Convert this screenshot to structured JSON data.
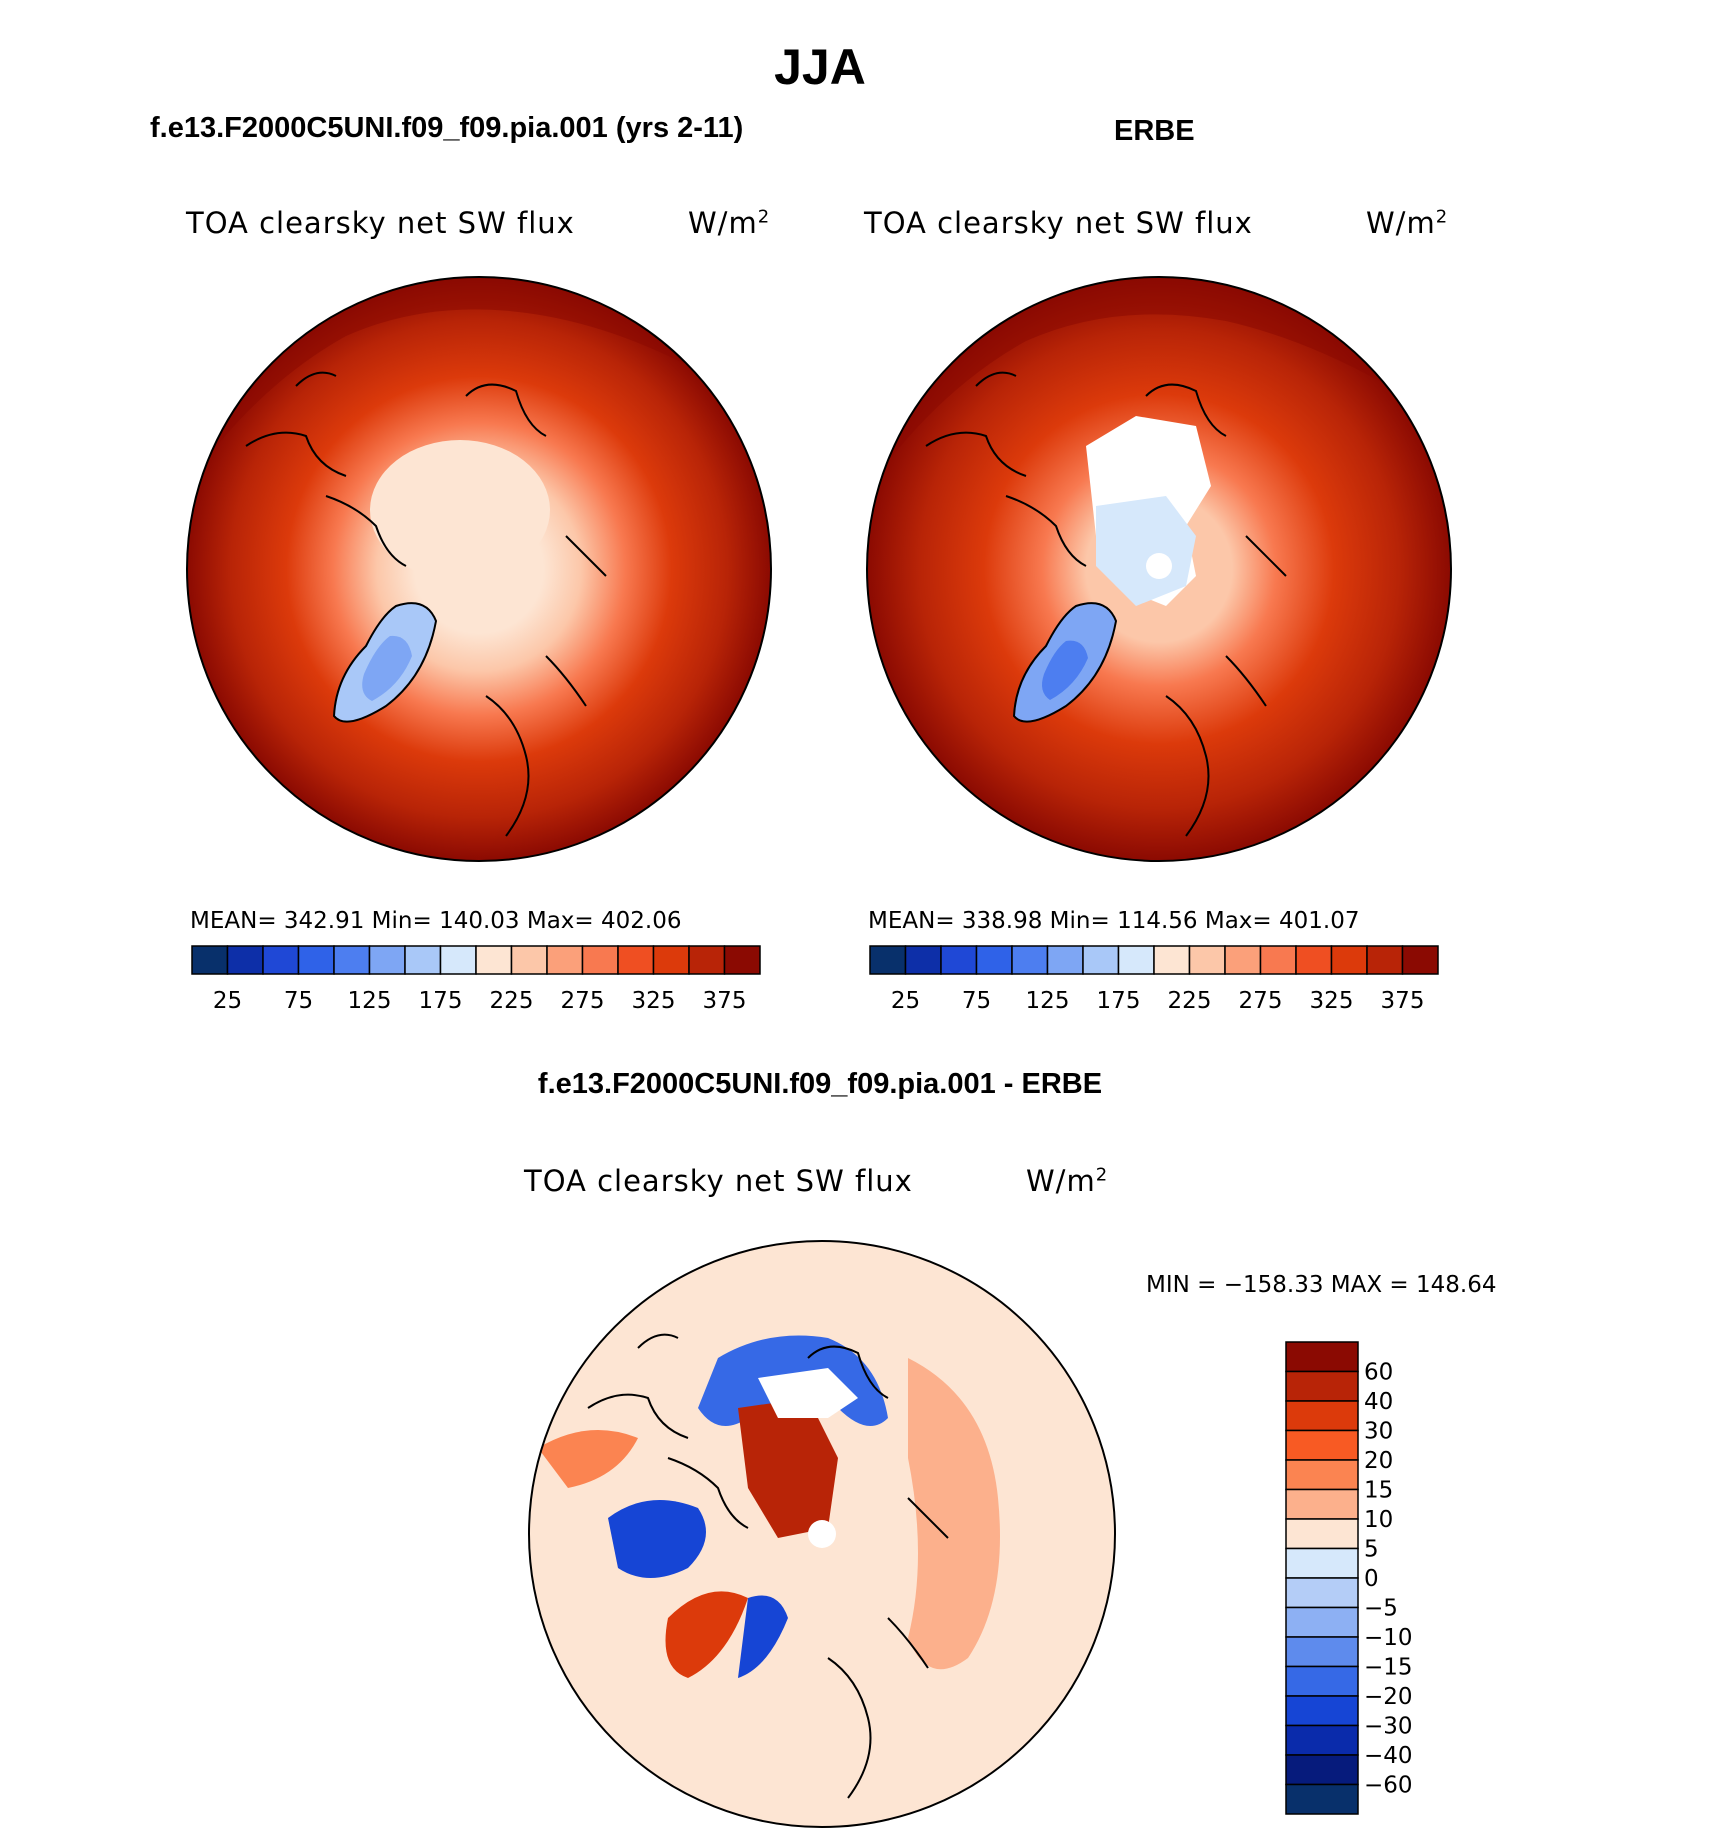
{
  "page_title": "JJA",
  "panels": [
    {
      "heading": "f.e13.F2000C5UNI.f09_f09.pia.001 (yrs 2-11)",
      "variable": "TOA clearsky net SW flux",
      "units_base": "W/m",
      "units_exp": "2",
      "stats": "MEAN= 342.91   Min= 140.03   Max= 402.06"
    },
    {
      "heading": "ERBE",
      "variable": "TOA clearsky net SW flux",
      "units_base": "W/m",
      "units_exp": "2",
      "stats": "MEAN= 338.98   Min= 114.56   Max= 401.07"
    },
    {
      "heading": "f.e13.F2000C5UNI.f09_f09.pia.001 - ERBE",
      "variable": "TOA clearsky net SW flux",
      "units_base": "W/m",
      "units_exp": "2",
      "stats": "MIN = −158.33 MAX = 148.64"
    }
  ],
  "chart_data": [
    {
      "type": "heatmap",
      "projection": "north polar stereographic",
      "title": "f.e13.F2000C5UNI.f09_f09.pia.001 (yrs 2-11)",
      "variable": "TOA clearsky net SW flux",
      "units": "W/m2",
      "mean": 342.91,
      "min": 140.03,
      "max": 402.06,
      "colorbar": {
        "orientation": "horizontal",
        "levels": [
          25,
          50,
          75,
          100,
          125,
          150,
          175,
          200,
          225,
          250,
          275,
          300,
          325,
          350,
          375
        ],
        "tick_labels": [
          "25",
          "75",
          "125",
          "175",
          "225",
          "275",
          "325",
          "375"
        ],
        "colors": [
          "#08306b",
          "#0d2fa8",
          "#1f48d6",
          "#2f62e8",
          "#4d7ef0",
          "#7ea6f4",
          "#a9c8f8",
          "#d6e8fb",
          "#fde5d3",
          "#fcc7a9",
          "#fba07a",
          "#f87950",
          "#ef4f22",
          "#dc3a0b",
          "#b82407",
          "#8b0a02"
        ]
      }
    },
    {
      "type": "heatmap",
      "projection": "north polar stereographic",
      "title": "ERBE",
      "variable": "TOA clearsky net SW flux",
      "units": "W/m2",
      "mean": 338.98,
      "min": 114.56,
      "max": 401.07,
      "colorbar": {
        "orientation": "horizontal",
        "levels": [
          25,
          50,
          75,
          100,
          125,
          150,
          175,
          200,
          225,
          250,
          275,
          300,
          325,
          350,
          375
        ],
        "tick_labels": [
          "25",
          "75",
          "125",
          "175",
          "225",
          "275",
          "325",
          "375"
        ],
        "colors": [
          "#08306b",
          "#0d2fa8",
          "#1f48d6",
          "#2f62e8",
          "#4d7ef0",
          "#7ea6f4",
          "#a9c8f8",
          "#d6e8fb",
          "#fde5d3",
          "#fcc7a9",
          "#fba07a",
          "#f87950",
          "#ef4f22",
          "#dc3a0b",
          "#b82407",
          "#8b0a02"
        ]
      }
    },
    {
      "type": "heatmap",
      "projection": "north polar stereographic",
      "title": "f.e13.F2000C5UNI.f09_f09.pia.001 - ERBE",
      "variable": "TOA clearsky net SW flux",
      "units": "W/m2",
      "min": -158.33,
      "max": 148.64,
      "colorbar": {
        "orientation": "vertical",
        "levels": [
          -60,
          -40,
          -30,
          -20,
          -15,
          -10,
          -5,
          0,
          5,
          10,
          15,
          20,
          30,
          40,
          60
        ],
        "tick_labels": [
          "60",
          "40",
          "30",
          "20",
          "15",
          "10",
          "5",
          "0",
          "−5",
          "−10",
          "−15",
          "−20",
          "−30",
          "−40",
          "−60"
        ],
        "colors": [
          "#8b0a02",
          "#b82407",
          "#dc3a0b",
          "#f85a23",
          "#fb8451",
          "#fcb08c",
          "#fde5d3",
          "#d6e8fb",
          "#b4cdf7",
          "#8db0f3",
          "#5e8bed",
          "#3669e6",
          "#1645d5",
          "#0a2bab",
          "#061b7c",
          "#08306b"
        ]
      }
    }
  ]
}
